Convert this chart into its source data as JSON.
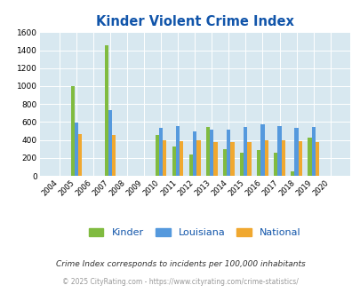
{
  "title": "Kinder Violent Crime Index",
  "all_years": [
    2004,
    2005,
    2006,
    2007,
    2008,
    2009,
    2010,
    2011,
    2012,
    2013,
    2014,
    2015,
    2016,
    2017,
    2018,
    2019,
    2020
  ],
  "kinder": [
    0,
    1000,
    0,
    1450,
    0,
    0,
    460,
    325,
    240,
    545,
    295,
    255,
    290,
    255,
    50,
    425,
    0
  ],
  "louisiana": [
    0,
    590,
    0,
    730,
    0,
    0,
    530,
    555,
    490,
    510,
    510,
    540,
    570,
    550,
    535,
    545,
    0
  ],
  "national": [
    0,
    470,
    0,
    460,
    0,
    0,
    400,
    385,
    395,
    380,
    375,
    375,
    395,
    395,
    385,
    380,
    0
  ],
  "kinder_color": "#80bb40",
  "louisiana_color": "#5599dd",
  "national_color": "#f0a830",
  "bg_color": "#d8e8f0",
  "ylim": [
    0,
    1600
  ],
  "yticks": [
    0,
    200,
    400,
    600,
    800,
    1000,
    1200,
    1400,
    1600
  ],
  "title_color": "#1155aa",
  "title_fontsize": 10.5,
  "legend_labels": [
    "Kinder",
    "Louisiana",
    "National"
  ],
  "footnote1": "Crime Index corresponds to incidents per 100,000 inhabitants",
  "footnote2": "© 2025 CityRating.com - https://www.cityrating.com/crime-statistics/",
  "footnote1_color": "#333333",
  "footnote2_color": "#999999"
}
